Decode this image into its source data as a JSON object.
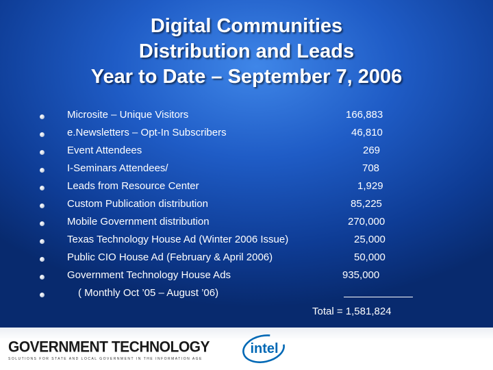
{
  "title": {
    "line1": "Digital Communities",
    "line2": "Distribution and Leads",
    "line3": "Year to Date – September 7, 2006"
  },
  "items": [
    {
      "label": "Microsite – Unique Visitors",
      "value": "166,883"
    },
    {
      "label": "e.Newsletters – Opt-In Subscribers",
      "value": "46,810"
    },
    {
      "label": "Event Attendees",
      "value": "269"
    },
    {
      "label": "I-Seminars Attendees/",
      "value": "708"
    },
    {
      "label": "Leads from Resource Center",
      "value": "1,929"
    },
    {
      "label": "Custom Publication distribution",
      "value": "85,225"
    },
    {
      "label": "Mobile Government distribution",
      "value": "270,000"
    },
    {
      "label": "Texas Technology House Ad (Winter 2006 Issue)",
      "value": "25,000"
    },
    {
      "label": "Public CIO House Ad (February & April 2006)",
      "value": "50,000"
    },
    {
      "label": "Government Technology House Ads",
      "value": "935,000"
    },
    {
      "label": "( Monthly  Oct ’05 – August ’06)",
      "value": ""
    }
  ],
  "total": "Total = 1,581,824",
  "footer": {
    "gt_logo": "GOVERNMENT TECHNOLOGY",
    "gt_tagline": "SOLUTIONS FOR STATE AND LOCAL GOVERNMENT IN THE INFORMATION AGE",
    "intel_logo": "intel"
  },
  "colors": {
    "background": "#1f5cc6",
    "text": "#ffffff"
  }
}
